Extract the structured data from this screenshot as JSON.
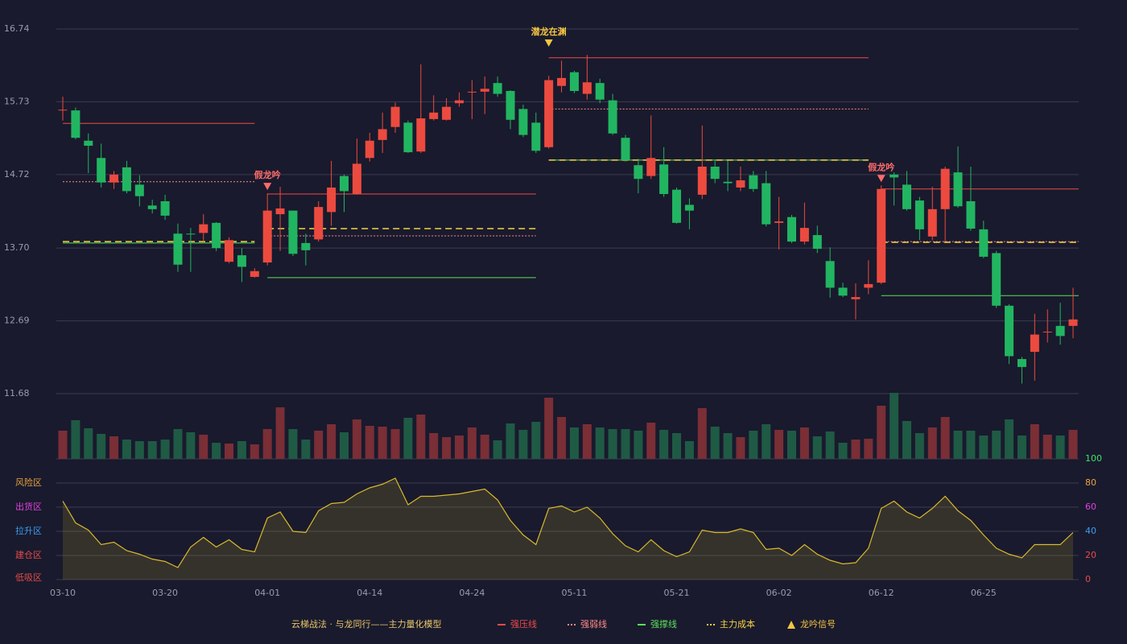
{
  "chart_data": {
    "type": "candlestick",
    "categories": [
      "03-10",
      null,
      null,
      null,
      null,
      null,
      null,
      null,
      "03-20",
      null,
      null,
      null,
      null,
      null,
      null,
      null,
      "04-01",
      null,
      null,
      null,
      null,
      null,
      null,
      null,
      "04-14",
      null,
      null,
      null,
      null,
      null,
      null,
      null,
      "04-24",
      null,
      null,
      null,
      null,
      null,
      null,
      null,
      "05-11",
      null,
      null,
      null,
      null,
      null,
      null,
      null,
      "05-21",
      null,
      null,
      null,
      null,
      null,
      null,
      null,
      "06-02",
      null,
      null,
      null,
      null,
      null,
      null,
      null,
      "06-12",
      null,
      null,
      null,
      null,
      null,
      null,
      null,
      "06-25",
      null,
      null,
      null,
      null,
      null,
      null,
      null
    ],
    "open": [
      15.61,
      15.61,
      15.19,
      14.95,
      14.61,
      14.82,
      14.58,
      14.29,
      14.35,
      13.9,
      13.9,
      13.91,
      14.05,
      13.51,
      13.6,
      13.3,
      13.5,
      14.17,
      14.22,
      13.77,
      13.82,
      14.2,
      14.7,
      14.45,
      14.95,
      15.2,
      15.38,
      15.44,
      15.04,
      15.49,
      15.48,
      15.71,
      15.86,
      15.87,
      15.99,
      15.88,
      15.63,
      15.44,
      15.1,
      15.95,
      16.14,
      15.84,
      15.99,
      15.75,
      15.23,
      14.85,
      14.7,
      14.86,
      14.51,
      14.3,
      14.44,
      14.83,
      14.62,
      14.54,
      14.71,
      14.6,
      14.05,
      14.13,
      13.79,
      13.88,
      13.52,
      13.15,
      12.99,
      13.15,
      13.22,
      14.72,
      14.58,
      14.36,
      13.86,
      14.24,
      14.75,
      14.35,
      13.96,
      13.63,
      12.9,
      12.16,
      12.26,
      12.53,
      12.62,
      12.62
    ],
    "close": [
      15.62,
      15.23,
      15.12,
      14.61,
      14.72,
      14.49,
      14.42,
      14.24,
      14.15,
      13.47,
      13.89,
      14.03,
      13.7,
      13.81,
      13.44,
      13.38,
      14.22,
      14.25,
      13.62,
      13.67,
      14.27,
      14.54,
      14.49,
      14.87,
      15.19,
      15.35,
      15.66,
      15.03,
      15.5,
      15.58,
      15.66,
      15.75,
      15.87,
      15.91,
      15.84,
      15.48,
      15.27,
      15.05,
      16.03,
      16.06,
      15.88,
      16.0,
      15.76,
      15.29,
      14.92,
      14.66,
      14.95,
      14.45,
      14.05,
      14.22,
      14.83,
      14.66,
      14.6,
      14.64,
      14.52,
      14.03,
      14.07,
      13.79,
      13.98,
      13.69,
      13.15,
      13.04,
      13.02,
      13.2,
      14.52,
      14.68,
      14.24,
      13.96,
      14.24,
      14.8,
      14.28,
      13.97,
      13.58,
      12.9,
      12.2,
      12.05,
      12.5,
      12.54,
      12.48,
      12.71
    ],
    "high": [
      15.8,
      15.65,
      15.29,
      15.15,
      14.77,
      14.91,
      14.71,
      14.37,
      14.44,
      14.04,
      13.98,
      14.17,
      14.06,
      13.85,
      13.7,
      13.42,
      14.46,
      14.55,
      14.22,
      13.9,
      14.35,
      14.91,
      14.72,
      15.22,
      15.3,
      15.58,
      15.72,
      15.47,
      16.25,
      15.82,
      15.78,
      15.86,
      16.03,
      16.08,
      16.08,
      15.89,
      15.69,
      15.58,
      16.09,
      16.3,
      16.16,
      16.38,
      16.05,
      15.84,
      15.27,
      14.94,
      15.54,
      15.1,
      14.54,
      14.39,
      15.4,
      14.93,
      14.91,
      14.83,
      14.77,
      14.77,
      14.41,
      14.16,
      14.33,
      14.01,
      13.71,
      13.22,
      13.21,
      13.53,
      14.57,
      14.75,
      14.77,
      14.41,
      14.55,
      14.83,
      15.11,
      14.83,
      14.08,
      13.66,
      12.92,
      12.19,
      12.79,
      12.85,
      12.94,
      13.15
    ],
    "low": [
      15.47,
      15.21,
      14.74,
      14.54,
      14.52,
      14.46,
      14.28,
      14.18,
      14.09,
      13.37,
      13.37,
      13.79,
      13.66,
      13.49,
      13.23,
      13.29,
      13.46,
      13.66,
      13.59,
      13.46,
      13.79,
      14.01,
      14.2,
      14.44,
      14.9,
      15.02,
      15.3,
      15.02,
      15.02,
      15.47,
      15.47,
      15.66,
      15.49,
      15.56,
      15.8,
      15.35,
      15.24,
      15.02,
      15.08,
      15.86,
      15.85,
      15.76,
      15.71,
      15.27,
      14.9,
      14.46,
      14.66,
      14.41,
      14.04,
      13.96,
      14.38,
      14.6,
      14.49,
      14.49,
      14.48,
      14.0,
      13.68,
      13.77,
      13.75,
      13.63,
      13.01,
      13.02,
      12.71,
      13.06,
      13.2,
      14.29,
      14.22,
      13.81,
      13.81,
      13.79,
      14.26,
      13.94,
      13.56,
      12.87,
      12.09,
      11.82,
      11.86,
      12.39,
      12.36,
      12.45
    ],
    "volume": [
      35,
      48,
      38,
      31,
      28,
      24,
      22,
      22,
      24,
      37,
      33,
      30,
      20,
      19,
      22,
      18,
      37,
      64,
      37,
      24,
      35,
      43,
      33,
      49,
      41,
      40,
      37,
      51,
      55,
      32,
      27,
      29,
      39,
      30,
      23,
      44,
      36,
      46,
      76,
      52,
      39,
      43,
      39,
      37,
      37,
      35,
      45,
      36,
      32,
      22,
      63,
      40,
      32,
      27,
      35,
      43,
      36,
      35,
      39,
      28,
      34,
      20,
      24,
      25,
      66,
      82,
      47,
      32,
      39,
      52,
      35,
      35,
      29,
      35,
      49,
      29,
      43,
      30,
      29,
      36
    ],
    "vlim": [
      0,
      82
    ],
    "osc": [
      65,
      47,
      41,
      29,
      31,
      24,
      21,
      17,
      15,
      10,
      27,
      35,
      27,
      33,
      25,
      23,
      51,
      56,
      40,
      39,
      57,
      63,
      64,
      71,
      76,
      79,
      84,
      62,
      69,
      69,
      70,
      71,
      73,
      75,
      66,
      49,
      37,
      29,
      59,
      61,
      56,
      60,
      51,
      38,
      28,
      23,
      33,
      24,
      19,
      23,
      41,
      39,
      39,
      42,
      39,
      25,
      26,
      20,
      29,
      21,
      16,
      13,
      14,
      26,
      59,
      65,
      56,
      51,
      59,
      69,
      57,
      49,
      37,
      26,
      21,
      18,
      29,
      29,
      29,
      39
    ],
    "ylim": [
      11.68,
      16.74
    ],
    "yticks": [
      16.74,
      15.73,
      14.72,
      {
        "value": 13.7,
        "label": "13.70"
      },
      12.69,
      11.68
    ],
    "osc_lim": [
      0,
      100
    ],
    "osc_ticks": [
      0,
      20,
      40,
      60,
      80,
      100
    ],
    "osc_tick_colors": [
      "#e84a4a",
      "#e84a4a",
      "#3a9ef0",
      "#e040e0",
      "#e8a33c",
      "#3ee06a"
    ],
    "zones": [
      {
        "value": 80,
        "label": "风险区",
        "color": "#e8a33c"
      },
      {
        "value": 60,
        "label": "出货区",
        "color": "#e040e0"
      },
      {
        "value": 40,
        "label": "拉升区",
        "color": "#3a9ef0"
      },
      {
        "value": 20,
        "label": "建仓区",
        "color": "#e84a4a"
      },
      {
        "value": 0,
        "label": "低吸区",
        "color": "#e84a4a"
      }
    ],
    "up_color": "#ec4a3f",
    "down_color": "#22b561",
    "vol_up_color": "#7a2e36",
    "vol_down_color": "#1f5a45",
    "osc_color": "#d9b92a",
    "legend_title": "云梯战法 · 与龙同行——主力量化模型",
    "legend": [
      {
        "name": "强压线",
        "color": "#f04a4a",
        "style": "solid"
      },
      {
        "name": "强弱线",
        "color": "#ff8a8a",
        "style": "dotted"
      },
      {
        "name": "强撑线",
        "color": "#5be05b",
        "style": "solid"
      },
      {
        "name": "主力成本",
        "color": "#f5d142",
        "style": "dashed"
      },
      {
        "name": "龙吟信号",
        "color": "#f5c542",
        "style": "triangle"
      }
    ],
    "levels": [
      {
        "start": 0,
        "end": 15,
        "values": [
          15.43,
          14.62,
          13.77,
          13.79
        ]
      },
      {
        "start": 16,
        "end": 37,
        "values": [
          14.45,
          13.87,
          13.29,
          13.97
        ]
      },
      {
        "start": 38,
        "end": 63,
        "values": [
          16.34,
          15.63,
          14.92,
          14.92
        ]
      },
      {
        "start": 64,
        "end": 79,
        "values": [
          14.52,
          13.79,
          13.04,
          13.78
        ]
      }
    ],
    "signals": [
      {
        "index": 16,
        "label": "假龙吟",
        "color": "#ff6b6b"
      },
      {
        "index": 38,
        "label": "潜龙在渊",
        "color": "#f5c542"
      },
      {
        "index": 64,
        "label": "假龙吟",
        "color": "#ff6b6b"
      }
    ]
  }
}
